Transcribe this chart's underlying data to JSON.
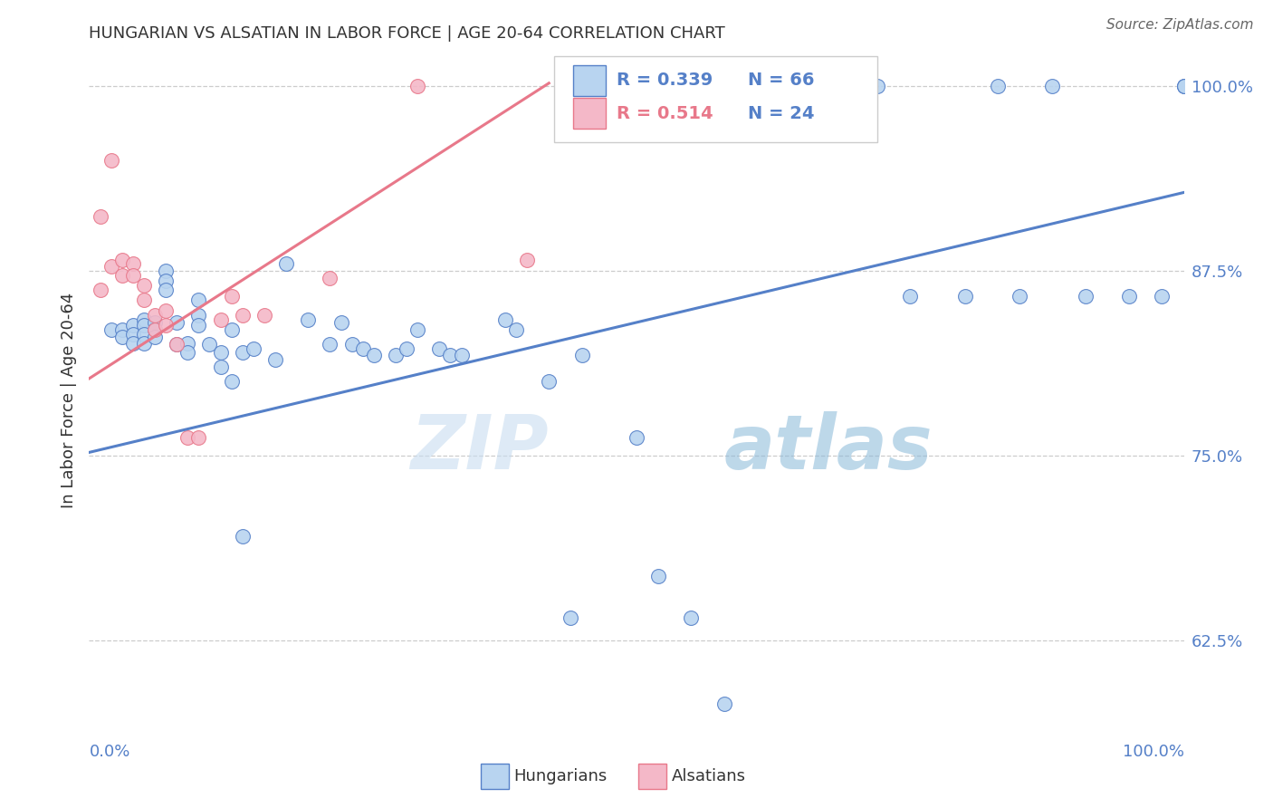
{
  "title": "HUNGARIAN VS ALSATIAN IN LABOR FORCE | AGE 20-64 CORRELATION CHART",
  "source": "Source: ZipAtlas.com",
  "ylabel": "In Labor Force | Age 20-64",
  "right_yticks": [
    0.625,
    0.75,
    0.875,
    1.0
  ],
  "right_yticklabels": [
    "62.5%",
    "75.0%",
    "87.5%",
    "100.0%"
  ],
  "xlim": [
    0.0,
    1.0
  ],
  "ylim": [
    0.555,
    1.02
  ],
  "watermark_zip": "ZIP",
  "watermark_atlas": "atlas",
  "blue_color": "#b8d4f0",
  "pink_color": "#f4b8c8",
  "blue_line_color": "#5580c8",
  "pink_line_color": "#e8788a",
  "title_color": "#333333",
  "right_tick_color": "#5580c8",
  "blue_r_color": "#5580c8",
  "pink_r_color": "#e8788a",
  "legend_n_color": "#5580c8",
  "hun_trend_x0": 0.0,
  "hun_trend_y0": 0.752,
  "hun_trend_x1": 1.0,
  "hun_trend_y1": 0.928,
  "als_trend_x0": 0.0,
  "als_trend_y0": 0.802,
  "als_trend_x1": 0.42,
  "als_trend_y1": 1.002,
  "hungarians_x": [
    0.02,
    0.03,
    0.03,
    0.04,
    0.04,
    0.04,
    0.05,
    0.05,
    0.05,
    0.05,
    0.06,
    0.06,
    0.06,
    0.07,
    0.07,
    0.07,
    0.08,
    0.08,
    0.09,
    0.09,
    0.1,
    0.1,
    0.1,
    0.11,
    0.12,
    0.12,
    0.13,
    0.13,
    0.14,
    0.14,
    0.15,
    0.17,
    0.18,
    0.2,
    0.22,
    0.23,
    0.24,
    0.25,
    0.26,
    0.28,
    0.29,
    0.3,
    0.32,
    0.33,
    0.34,
    0.38,
    0.39,
    0.42,
    0.44,
    0.45,
    0.5,
    0.52,
    0.55,
    0.58,
    0.72,
    0.75,
    0.8,
    0.83,
    0.85,
    0.88,
    0.91,
    0.95,
    0.98,
    1.0,
    1.0,
    1.0
  ],
  "hungarians_y": [
    0.835,
    0.835,
    0.83,
    0.838,
    0.832,
    0.826,
    0.842,
    0.838,
    0.832,
    0.826,
    0.84,
    0.835,
    0.83,
    0.875,
    0.868,
    0.862,
    0.84,
    0.825,
    0.826,
    0.82,
    0.855,
    0.845,
    0.838,
    0.825,
    0.82,
    0.81,
    0.835,
    0.8,
    0.82,
    0.695,
    0.822,
    0.815,
    0.88,
    0.842,
    0.825,
    0.84,
    0.825,
    0.822,
    0.818,
    0.818,
    0.822,
    0.835,
    0.822,
    0.818,
    0.818,
    0.842,
    0.835,
    0.8,
    0.64,
    0.818,
    0.762,
    0.668,
    0.64,
    0.582,
    1.0,
    0.858,
    0.858,
    1.0,
    0.858,
    1.0,
    0.858,
    0.858,
    0.858,
    1.0,
    1.0,
    1.0
  ],
  "alsatians_x": [
    0.01,
    0.01,
    0.02,
    0.02,
    0.03,
    0.03,
    0.04,
    0.04,
    0.05,
    0.05,
    0.06,
    0.06,
    0.07,
    0.07,
    0.08,
    0.09,
    0.1,
    0.12,
    0.13,
    0.14,
    0.16,
    0.22,
    0.3,
    0.4
  ],
  "alsatians_y": [
    0.912,
    0.862,
    0.95,
    0.878,
    0.882,
    0.872,
    0.88,
    0.872,
    0.865,
    0.855,
    0.845,
    0.835,
    0.848,
    0.838,
    0.825,
    0.762,
    0.762,
    0.842,
    0.858,
    0.845,
    0.845,
    0.87,
    1.0,
    0.882
  ]
}
